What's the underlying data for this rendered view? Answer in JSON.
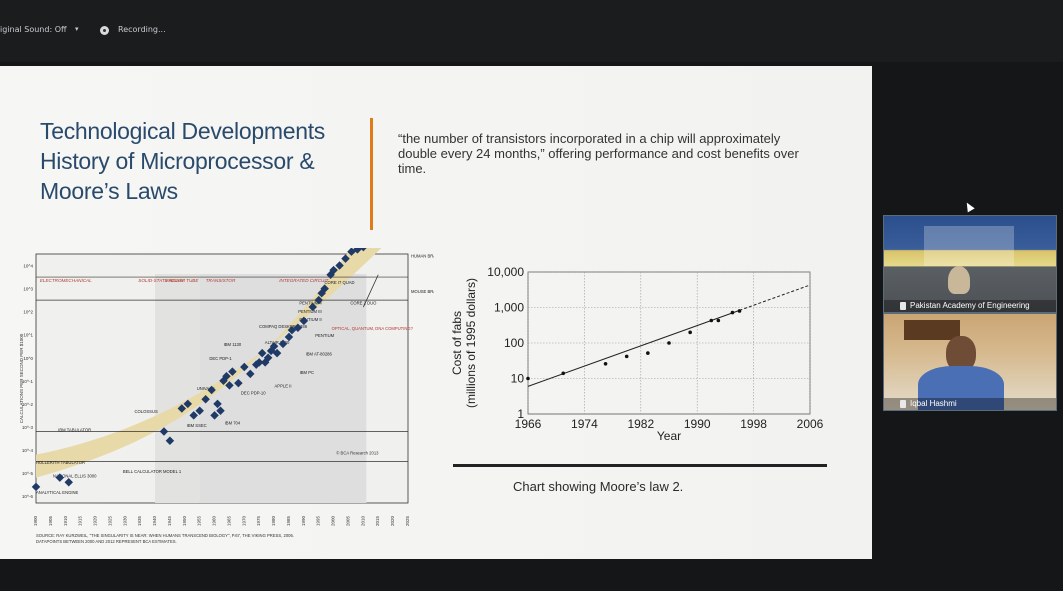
{
  "topbar": {
    "audio_label": "iginal Sound: Off",
    "dropdown_icon": "chevron-down-icon",
    "recording_label": "Recording..."
  },
  "slide": {
    "title": "Technological Developments History of Microprocessor & Moore’s Laws",
    "quote": "“the number of transistors incorporated in a chip will approximately double every 24 months,” offering performance and cost benefits over time.",
    "caption": "Chart showing Moore’s law 2.",
    "accent_color": "#e07b1c",
    "title_color": "#2a4a6c"
  },
  "participants": [
    {
      "name": "Pakistan Academy of Engineering",
      "pin_icon": "pin-icon"
    },
    {
      "name": "Iqbal Hashmi",
      "pin_icon": "pin-icon"
    }
  ],
  "chart_data": [
    {
      "type": "scatter",
      "title": "",
      "ylabel": "CALCULATIONS PER SECOND PER $1000",
      "y_ticks": [
        "10^4",
        "10^3",
        "10^2",
        "10^1",
        "10^0",
        "10^-1",
        "10^-2",
        "10^-3",
        "10^-4",
        "10^-5",
        "10^-6"
      ],
      "x_ticks": [
        "1900",
        "1905",
        "1910",
        "1915",
        "1920",
        "1925",
        "1930",
        "1935",
        "1940",
        "1945",
        "1950",
        "1955",
        "1960",
        "1965",
        "1970",
        "1975",
        "1980",
        "1985",
        "1990",
        "1995",
        "2000",
        "2005",
        "2010",
        "2015",
        "2020",
        "2025"
      ],
      "x_min": 1900,
      "x_max": 2025,
      "eras": [
        "ELECTROMECHANICAL",
        "SOLID-STATE RELAY",
        "VACUUM TUBE",
        "TRANSISTOR",
        "INTEGRATED CIRCUIT"
      ],
      "annotations": [
        "HUMAN BRAIN",
        "MOUSE BRAIN",
        "OPTICAL, QUANTUM, DNA COMPUTING?",
        "© BCA Research 2013",
        "CORE I7 QUAD",
        "CORE 2 DUO",
        "PENTIUM 4",
        "PENTIUM III",
        "PENTIUM II",
        "PENTIUM",
        "COMPAQ DESKPRO 386",
        "ALTAIR 8800",
        "IBM AT-80286",
        "IBM PC",
        "APPLE II",
        "DEC PDP-10",
        "DEC PDP-1",
        "IBM 1130",
        "UNIVAC I",
        "IBM SSEC",
        "IBM 704",
        "COLOSSUS",
        "BELL CALCULATOR MODEL 1",
        "IBM TABULATOR",
        "NATIONAL ELLIS 3000",
        "HOLLERITH TABULATOR",
        "ANALYTICAL ENGINE"
      ],
      "source": "SOURCE: RAY KURZWEIL, \"THE SINGULARITY IS NEAR: WHEN HUMANS TRANSCEND BIOLOGY\", P.67, THE VIKING PRESS, 2006. DATAPOINTS BETWEEN 2000 AND 2012 REPRESENT BCA ESTIMATES.",
      "points": [
        {
          "x": 1900,
          "y": -5.6
        },
        {
          "x": 1908,
          "y": -5.2
        },
        {
          "x": 1911,
          "y": -5.4
        },
        {
          "x": 1943,
          "y": -3.2
        },
        {
          "x": 1945,
          "y": -3.6
        },
        {
          "x": 1949,
          "y": -2.2
        },
        {
          "x": 1951,
          "y": -2.0
        },
        {
          "x": 1953,
          "y": -2.5
        },
        {
          "x": 1955,
          "y": -2.3
        },
        {
          "x": 1957,
          "y": -1.8
        },
        {
          "x": 1959,
          "y": -1.4
        },
        {
          "x": 1960,
          "y": -2.5
        },
        {
          "x": 1961,
          "y": -2.0
        },
        {
          "x": 1962,
          "y": -2.3
        },
        {
          "x": 1963,
          "y": -1.0
        },
        {
          "x": 1964,
          "y": -0.8
        },
        {
          "x": 1965,
          "y": -1.2
        },
        {
          "x": 1966,
          "y": -0.6
        },
        {
          "x": 1968,
          "y": -1.1
        },
        {
          "x": 1970,
          "y": -0.4
        },
        {
          "x": 1972,
          "y": -0.7
        },
        {
          "x": 1974,
          "y": -0.3
        },
        {
          "x": 1975,
          "y": -0.2
        },
        {
          "x": 1976,
          "y": 0.2
        },
        {
          "x": 1977,
          "y": -0.2
        },
        {
          "x": 1978,
          "y": 0.0
        },
        {
          "x": 1979,
          "y": 0.3
        },
        {
          "x": 1980,
          "y": 0.5
        },
        {
          "x": 1981,
          "y": 0.2
        },
        {
          "x": 1983,
          "y": 0.6
        },
        {
          "x": 1985,
          "y": 0.9
        },
        {
          "x": 1986,
          "y": 1.2
        },
        {
          "x": 1988,
          "y": 1.3
        },
        {
          "x": 1990,
          "y": 1.6
        },
        {
          "x": 1993,
          "y": 2.2
        },
        {
          "x": 1995,
          "y": 2.5
        },
        {
          "x": 1996,
          "y": 2.8
        },
        {
          "x": 1997,
          "y": 3.0
        },
        {
          "x": 1999,
          "y": 3.6
        },
        {
          "x": 2000,
          "y": 3.8
        },
        {
          "x": 2002,
          "y": 4.0
        },
        {
          "x": 2004,
          "y": 4.3
        },
        {
          "x": 2006,
          "y": 4.6
        },
        {
          "x": 2008,
          "y": 4.7
        },
        {
          "x": 2010,
          "y": 4.8
        }
      ],
      "band_color": "#e8d9a8",
      "point_color": "#1f3a66"
    },
    {
      "type": "line",
      "title": "",
      "xlabel": "Year",
      "ylabel": "Cost of fabs (millions of 1995 dollars)",
      "x_ticks": [
        1966,
        1974,
        1982,
        1990,
        1998,
        2006
      ],
      "y_ticks": [
        "1",
        "10",
        "100",
        "1,000",
        "10,000"
      ],
      "y_scale": "log",
      "xlim": [
        1966,
        2006
      ],
      "ylim": [
        1,
        10000
      ],
      "points": [
        {
          "x": 1966,
          "y": 10
        },
        {
          "x": 1971,
          "y": 14
        },
        {
          "x": 1977,
          "y": 26
        },
        {
          "x": 1980,
          "y": 42
        },
        {
          "x": 1983,
          "y": 52
        },
        {
          "x": 1986,
          "y": 100
        },
        {
          "x": 1989,
          "y": 200
        },
        {
          "x": 1992,
          "y": 430
        },
        {
          "x": 1993,
          "y": 430
        },
        {
          "x": 1995,
          "y": 720
        },
        {
          "x": 1996,
          "y": 800
        }
      ],
      "trend_line": {
        "x": [
          1966,
          2006
        ],
        "y": [
          6,
          4300
        ]
      }
    }
  ]
}
